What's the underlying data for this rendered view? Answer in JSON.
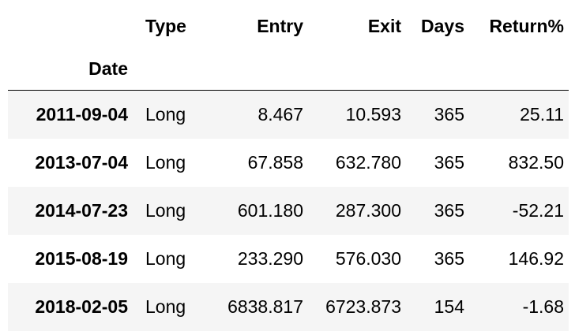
{
  "table": {
    "index_name": "Date",
    "columns": [
      "Type",
      "Entry",
      "Exit",
      "Days",
      "Return%"
    ],
    "rows": [
      {
        "date": "2011-09-04",
        "type": "Long",
        "entry": "8.467",
        "exit": "10.593",
        "days": "365",
        "return": "25.11"
      },
      {
        "date": "2013-07-04",
        "type": "Long",
        "entry": "67.858",
        "exit": "632.780",
        "days": "365",
        "return": "832.50"
      },
      {
        "date": "2014-07-23",
        "type": "Long",
        "entry": "601.180",
        "exit": "287.300",
        "days": "365",
        "return": "-52.21"
      },
      {
        "date": "2015-08-19",
        "type": "Long",
        "entry": "233.290",
        "exit": "576.030",
        "days": "365",
        "return": "146.92"
      },
      {
        "date": "2018-02-05",
        "type": "Long",
        "entry": "6838.817",
        "exit": "6723.873",
        "days": "154",
        "return": "-1.68"
      }
    ]
  }
}
